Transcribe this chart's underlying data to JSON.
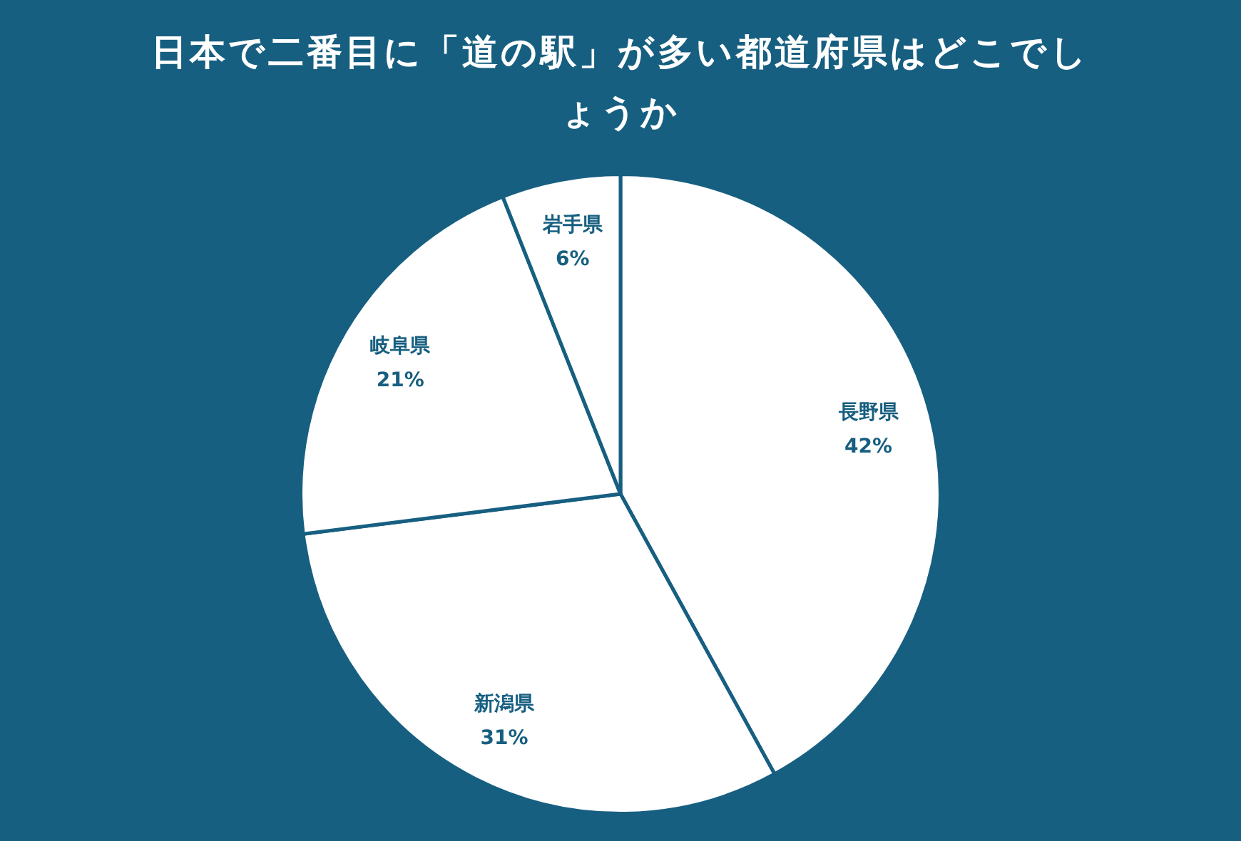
{
  "chart_data": {
    "type": "pie",
    "title": "日本で二番目に「道の駅」が多い都道府県はどこでしょうか",
    "categories": [
      "長野県",
      "新潟県",
      "岐阜県",
      "岩手県"
    ],
    "values": [
      42,
      31,
      21,
      6
    ],
    "value_labels": [
      "42%",
      "31%",
      "21%",
      "6%"
    ],
    "colors": [
      "#ffffff",
      "#ffffff",
      "#ffffff",
      "#ffffff"
    ],
    "legend": false
  }
}
